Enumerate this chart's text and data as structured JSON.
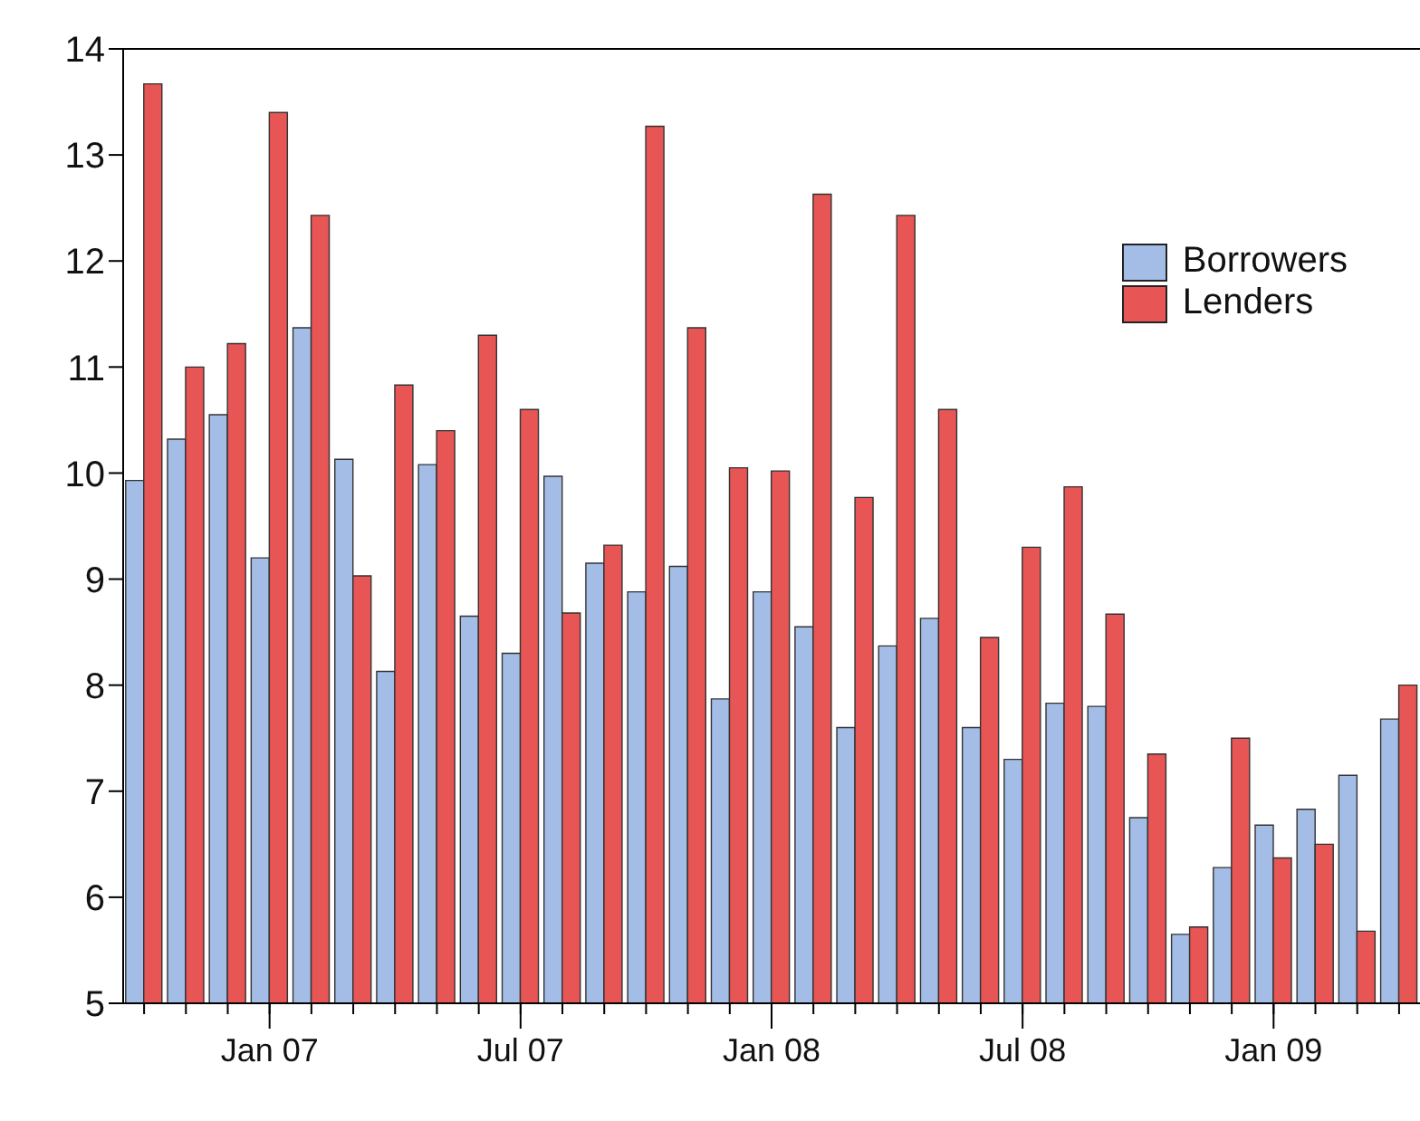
{
  "chart_data": {
    "type": "bar",
    "categories": [
      null,
      null,
      null,
      "Jan 07",
      null,
      null,
      null,
      null,
      null,
      "Jul 07",
      null,
      null,
      null,
      null,
      null,
      "Jan 08",
      null,
      null,
      null,
      null,
      null,
      "Jul 08",
      null,
      null,
      null,
      null,
      null,
      "Jan 09",
      null,
      null,
      null
    ],
    "series": [
      {
        "name": "Borrowers",
        "color": "#a4bde6",
        "values": [
          9.93,
          10.32,
          10.55,
          9.2,
          11.37,
          10.13,
          8.13,
          10.08,
          8.65,
          8.3,
          9.97,
          9.15,
          8.88,
          9.12,
          7.87,
          8.88,
          8.55,
          7.6,
          8.37,
          8.63,
          7.6,
          7.3,
          7.83,
          7.8,
          6.75,
          5.65,
          6.28,
          6.68,
          6.83,
          7.15,
          7.68
        ]
      },
      {
        "name": "Lenders",
        "color": "#e85555",
        "values": [
          13.67,
          11.0,
          11.22,
          13.4,
          12.43,
          9.03,
          10.83,
          10.4,
          11.3,
          10.6,
          8.68,
          9.32,
          13.27,
          11.37,
          10.05,
          10.02,
          12.63,
          9.77,
          12.43,
          10.6,
          8.45,
          9.3,
          9.87,
          8.67,
          7.35,
          5.72,
          7.5,
          6.37,
          6.5,
          5.68,
          8.0
        ]
      }
    ],
    "ylim": [
      5,
      14
    ],
    "yticks": [
      5,
      6,
      7,
      8,
      9,
      10,
      11,
      12,
      13,
      14
    ],
    "grid": false,
    "legend": "top right"
  }
}
